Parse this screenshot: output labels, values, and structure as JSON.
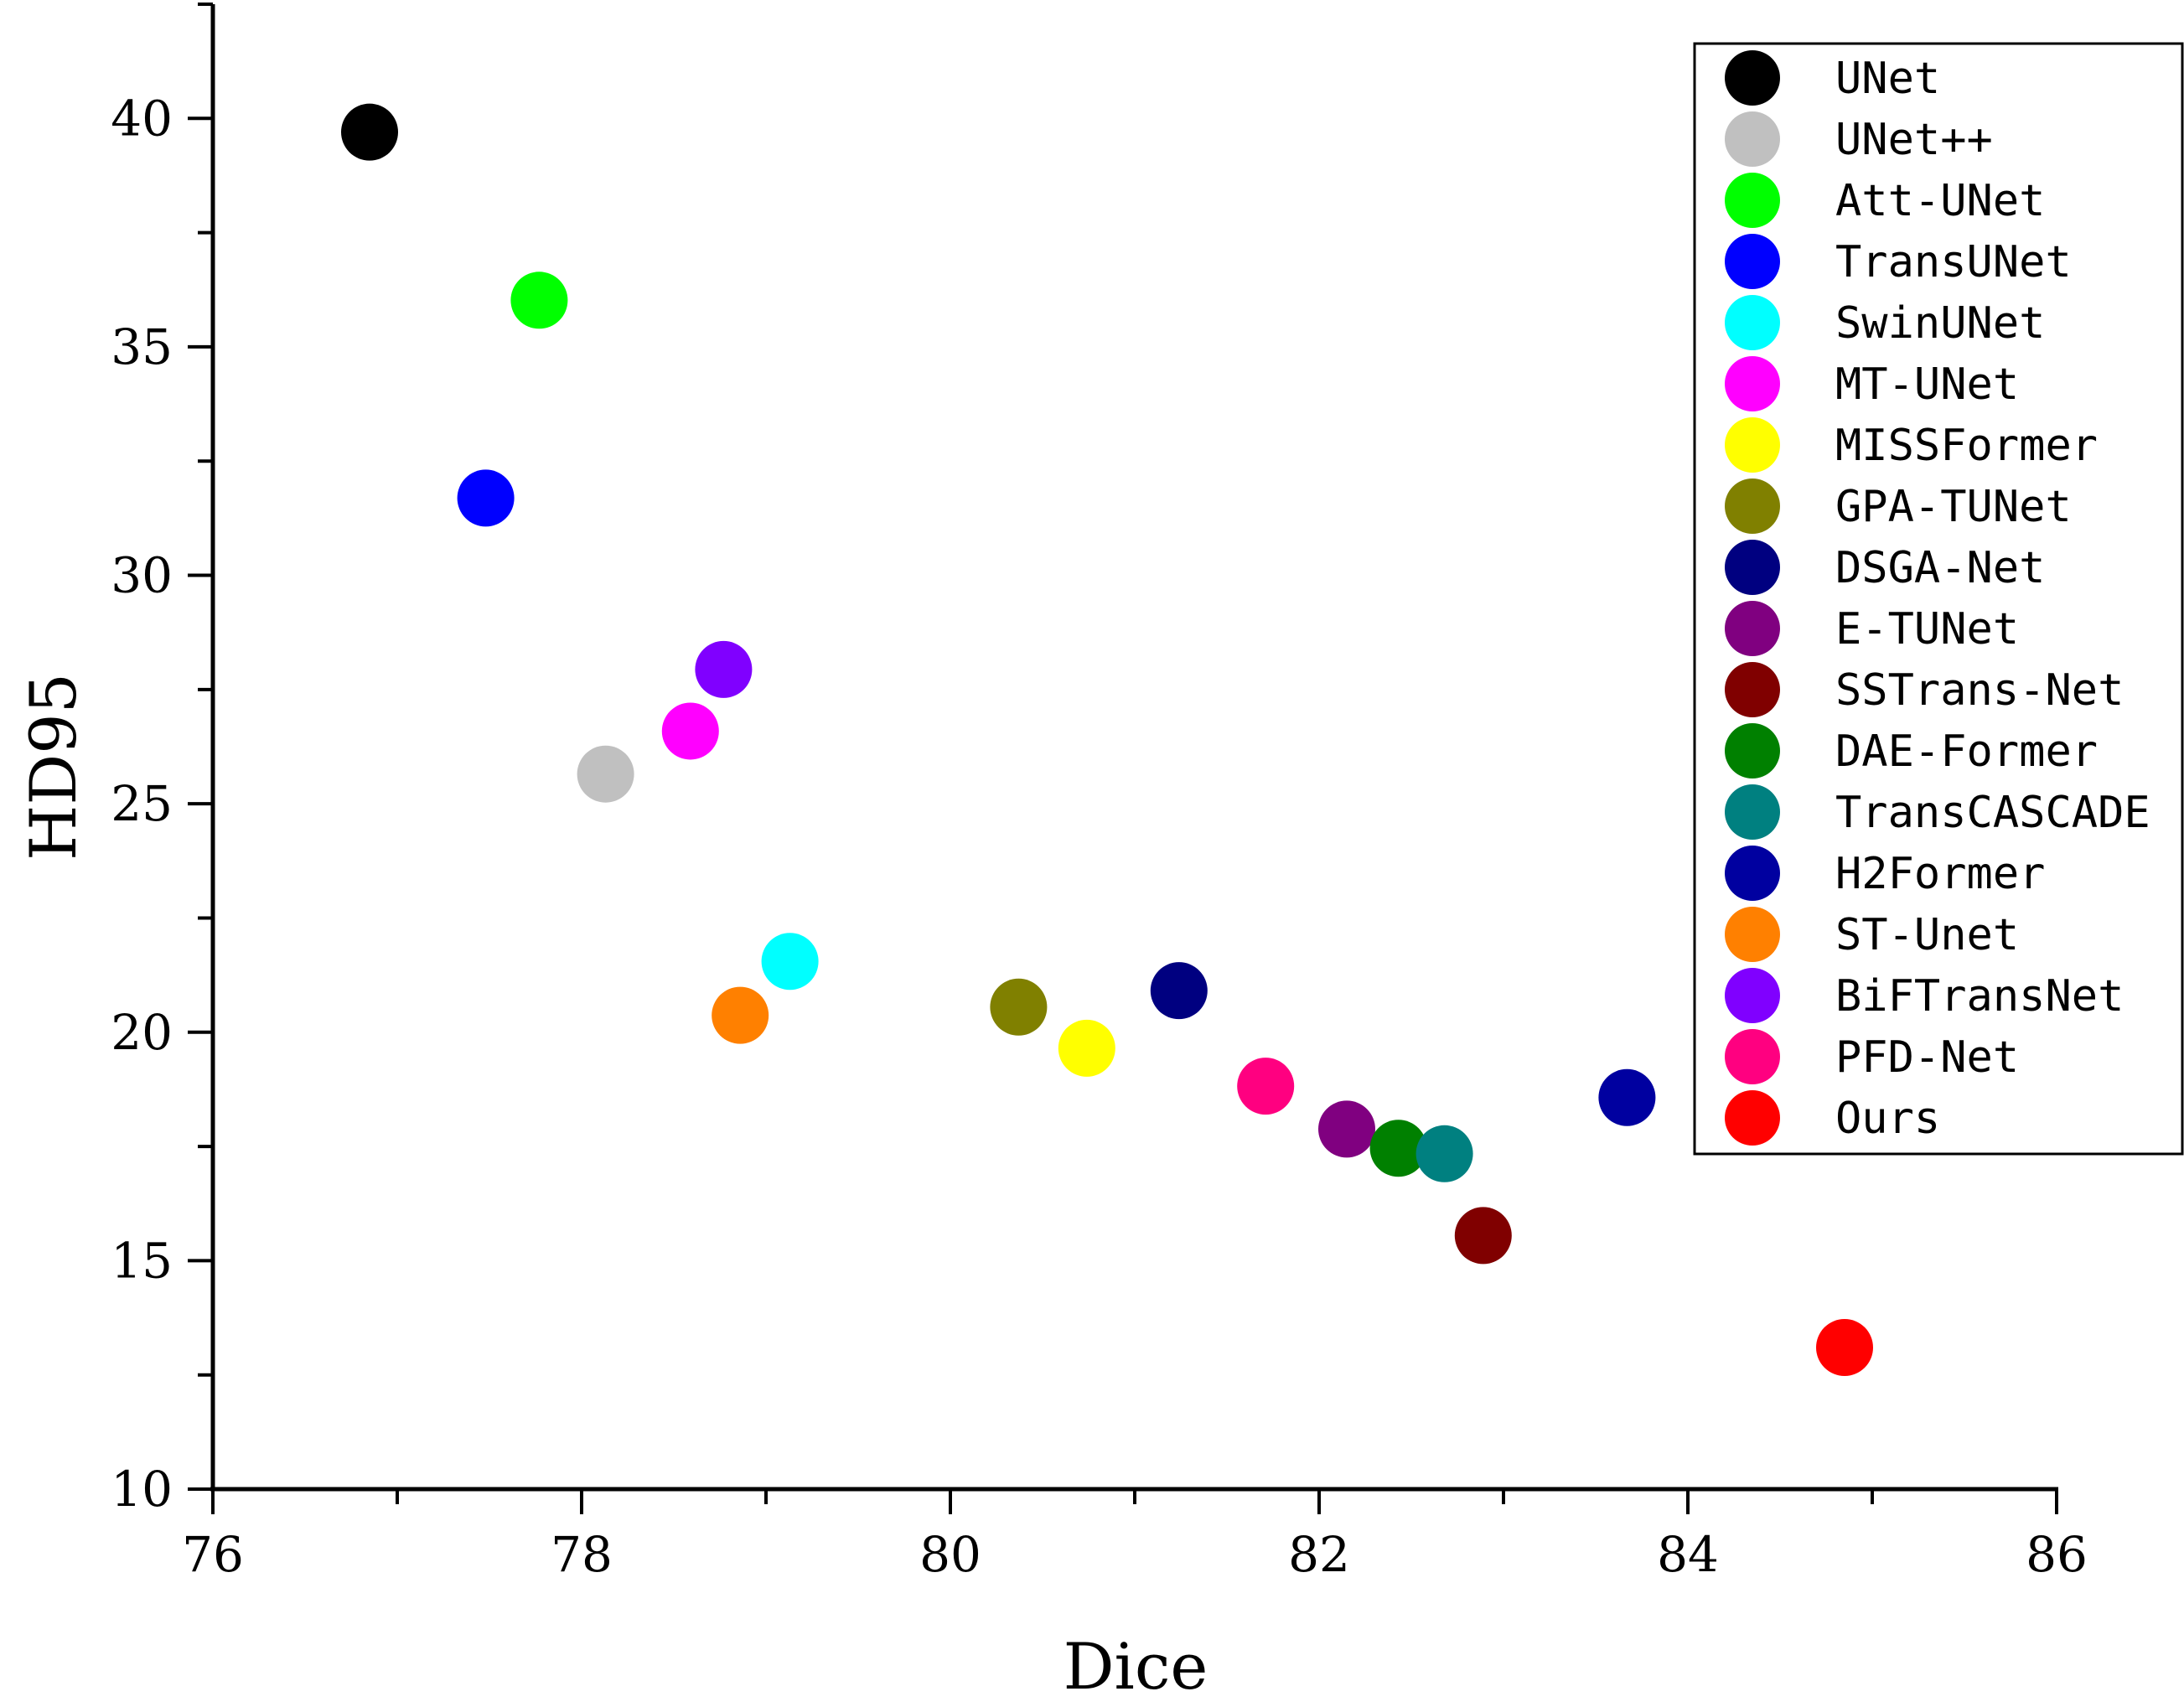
{
  "chart_data": {
    "type": "scatter",
    "xlabel": "Dice",
    "ylabel": "HD95",
    "xlim": [
      76,
      86
    ],
    "ylim": [
      10,
      42.5
    ],
    "xticks": [
      76,
      78,
      80,
      82,
      84,
      86
    ],
    "yticks": [
      10,
      15,
      20,
      25,
      30,
      35,
      40
    ],
    "legend_position": "top-right",
    "grid": false,
    "series": [
      {
        "name": "UNet",
        "color": "#000000",
        "x": 76.85,
        "y": 39.7
      },
      {
        "name": "UNet++",
        "color": "#c0c0c0",
        "x": 78.13,
        "y": 25.65
      },
      {
        "name": "Att-UNet",
        "color": "#00ff00",
        "x": 77.77,
        "y": 36.02
      },
      {
        "name": "TransUNet",
        "color": "#0000ff",
        "x": 77.48,
        "y": 31.69
      },
      {
        "name": "SwinUNet",
        "color": "#00ffff",
        "x": 79.13,
        "y": 21.55
      },
      {
        "name": "MT-UNet",
        "color": "#ff00ff",
        "x": 78.59,
        "y": 26.59
      },
      {
        "name": "MISSFormer",
        "color": "#ffff00",
        "x": 80.74,
        "y": 19.65
      },
      {
        "name": "GPA-TUNet",
        "color": "#808000",
        "x": 80.37,
        "y": 20.55
      },
      {
        "name": "DSGA-Net",
        "color": "#000080",
        "x": 81.24,
        "y": 20.91
      },
      {
        "name": "E-TUNet",
        "color": "#800080",
        "x": 82.15,
        "y": 17.88
      },
      {
        "name": "SSTrans-Net",
        "color": "#800000",
        "x": 82.89,
        "y": 15.55
      },
      {
        "name": "DAE-Former",
        "color": "#008000",
        "x": 82.43,
        "y": 17.46
      },
      {
        "name": "TransCASCADE",
        "color": "#008080",
        "x": 82.68,
        "y": 17.34
      },
      {
        "name": "H2Former",
        "color": "#0000a0",
        "x": 83.67,
        "y": 18.57
      },
      {
        "name": "ST-Unet",
        "color": "#ff8000",
        "x": 78.86,
        "y": 20.37
      },
      {
        "name": "BiFTransNet",
        "color": "#8000ff",
        "x": 78.77,
        "y": 27.94
      },
      {
        "name": "PFD-Net",
        "color": "#ff0080",
        "x": 81.71,
        "y": 18.82
      },
      {
        "name": "Ours",
        "color": "#ff0000",
        "x": 84.85,
        "y": 13.1
      }
    ]
  }
}
